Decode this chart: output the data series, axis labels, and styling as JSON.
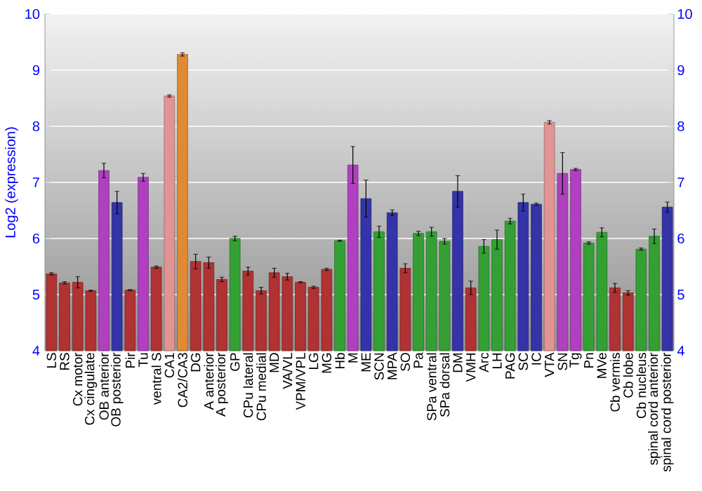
{
  "chart_data": {
    "type": "bar",
    "ylabel": "Log2 (expression)",
    "categories": [
      "LS",
      "RS",
      "Cx motor",
      "Cx cingulate",
      "OB anterior",
      "OB posterior",
      "Pir",
      "Tu",
      "ventral S",
      "CA1",
      "CA2/CA3",
      "DG",
      "A anterior",
      "A posterior",
      "GP",
      "CPu lateral",
      "CPu medial",
      "MD",
      "VA/VL",
      "VPM/VPL",
      "LG",
      "MG",
      "Hb",
      "M",
      "ME",
      "SCN",
      "MPA",
      "SO",
      "Pa",
      "SPa ventral",
      "SPa dorsal",
      "DM",
      "VMH",
      "Arc",
      "LH",
      "PAG",
      "SC",
      "IC",
      "VTA",
      "SN",
      "Tg",
      "Pn",
      "MVe",
      "Cb vermis",
      "Cb lobe",
      "Cb nucleus",
      "spinal cord anterior",
      "spinal cord posterior"
    ],
    "values": [
      5.37,
      5.21,
      5.22,
      5.07,
      7.21,
      6.64,
      5.08,
      7.09,
      5.49,
      8.54,
      9.28,
      5.59,
      5.57,
      5.27,
      6.0,
      5.42,
      5.07,
      5.39,
      5.32,
      5.22,
      5.13,
      5.45,
      5.96,
      7.31,
      6.71,
      6.12,
      6.46,
      5.47,
      6.09,
      6.12,
      5.95,
      6.84,
      5.12,
      5.86,
      5.98,
      6.31,
      6.64,
      6.61,
      8.07,
      7.16,
      7.23,
      5.92,
      6.11,
      5.12,
      5.03,
      5.81,
      6.04,
      6.56
    ],
    "errors": [
      0.02,
      0.02,
      0.1,
      0.01,
      0.13,
      0.2,
      0.01,
      0.07,
      0.02,
      0.02,
      0.03,
      0.13,
      0.1,
      0.04,
      0.04,
      0.07,
      0.06,
      0.08,
      0.06,
      0.01,
      0.02,
      0.02,
      0.01,
      0.33,
      0.33,
      0.1,
      0.05,
      0.08,
      0.04,
      0.08,
      0.05,
      0.28,
      0.12,
      0.12,
      0.17,
      0.05,
      0.15,
      0.02,
      0.03,
      0.37,
      0.02,
      0.02,
      0.08,
      0.08,
      0.04,
      0.02,
      0.13,
      0.09
    ],
    "colors": [
      "#b03232",
      "#b03232",
      "#b03232",
      "#b03232",
      "#b040c0",
      "#3434a8",
      "#b03232",
      "#b040c0",
      "#b03232",
      "#e09494",
      "#e08a34",
      "#b03232",
      "#b03232",
      "#b03232",
      "#34a034",
      "#b03232",
      "#b03232",
      "#b03232",
      "#b03232",
      "#b03232",
      "#b03232",
      "#b03232",
      "#34a034",
      "#b040c0",
      "#3434a8",
      "#34a034",
      "#3434a8",
      "#b03232",
      "#34a034",
      "#34a034",
      "#34a034",
      "#3434a8",
      "#b03232",
      "#34a034",
      "#34a034",
      "#34a034",
      "#3434a8",
      "#3434a8",
      "#e09494",
      "#b040c0",
      "#b040c0",
      "#34a034",
      "#34a034",
      "#b03232",
      "#b03232",
      "#34a034",
      "#34a034",
      "#3434a8"
    ],
    "ylim": [
      4,
      10
    ],
    "yticks": [
      4,
      5,
      6,
      7,
      8,
      9,
      10
    ],
    "y2lim": [
      4,
      10
    ],
    "y2ticks": [
      4,
      5,
      6,
      7,
      8,
      9,
      10
    ],
    "grid": "y"
  }
}
